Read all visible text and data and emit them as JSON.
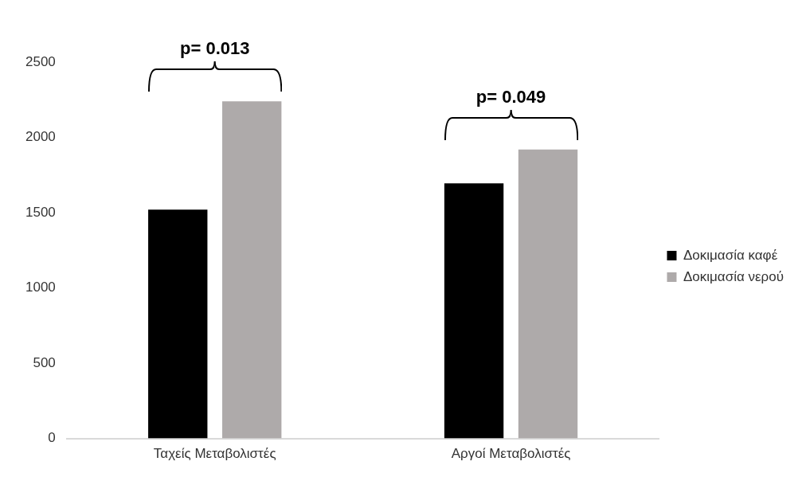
{
  "chart_data": {
    "type": "bar",
    "categories": [
      "Ταχείς Μεταβολιστές",
      "Αργοί Μεταβολιστές"
    ],
    "series": [
      {
        "name": "Δοκιμασία καφέ",
        "color": "#000000",
        "values": [
          1520,
          1695
        ]
      },
      {
        "name": "Δοκιμασία νερού",
        "color": "#aeaaaa",
        "values": [
          2240,
          1920
        ]
      }
    ],
    "ylim": [
      0,
      2500
    ],
    "yticks": [
      0,
      500,
      1000,
      1500,
      2000,
      2500
    ],
    "grid": false,
    "legend": "right",
    "annotations": [
      "p= 0.013",
      "p= 0.049"
    ]
  }
}
